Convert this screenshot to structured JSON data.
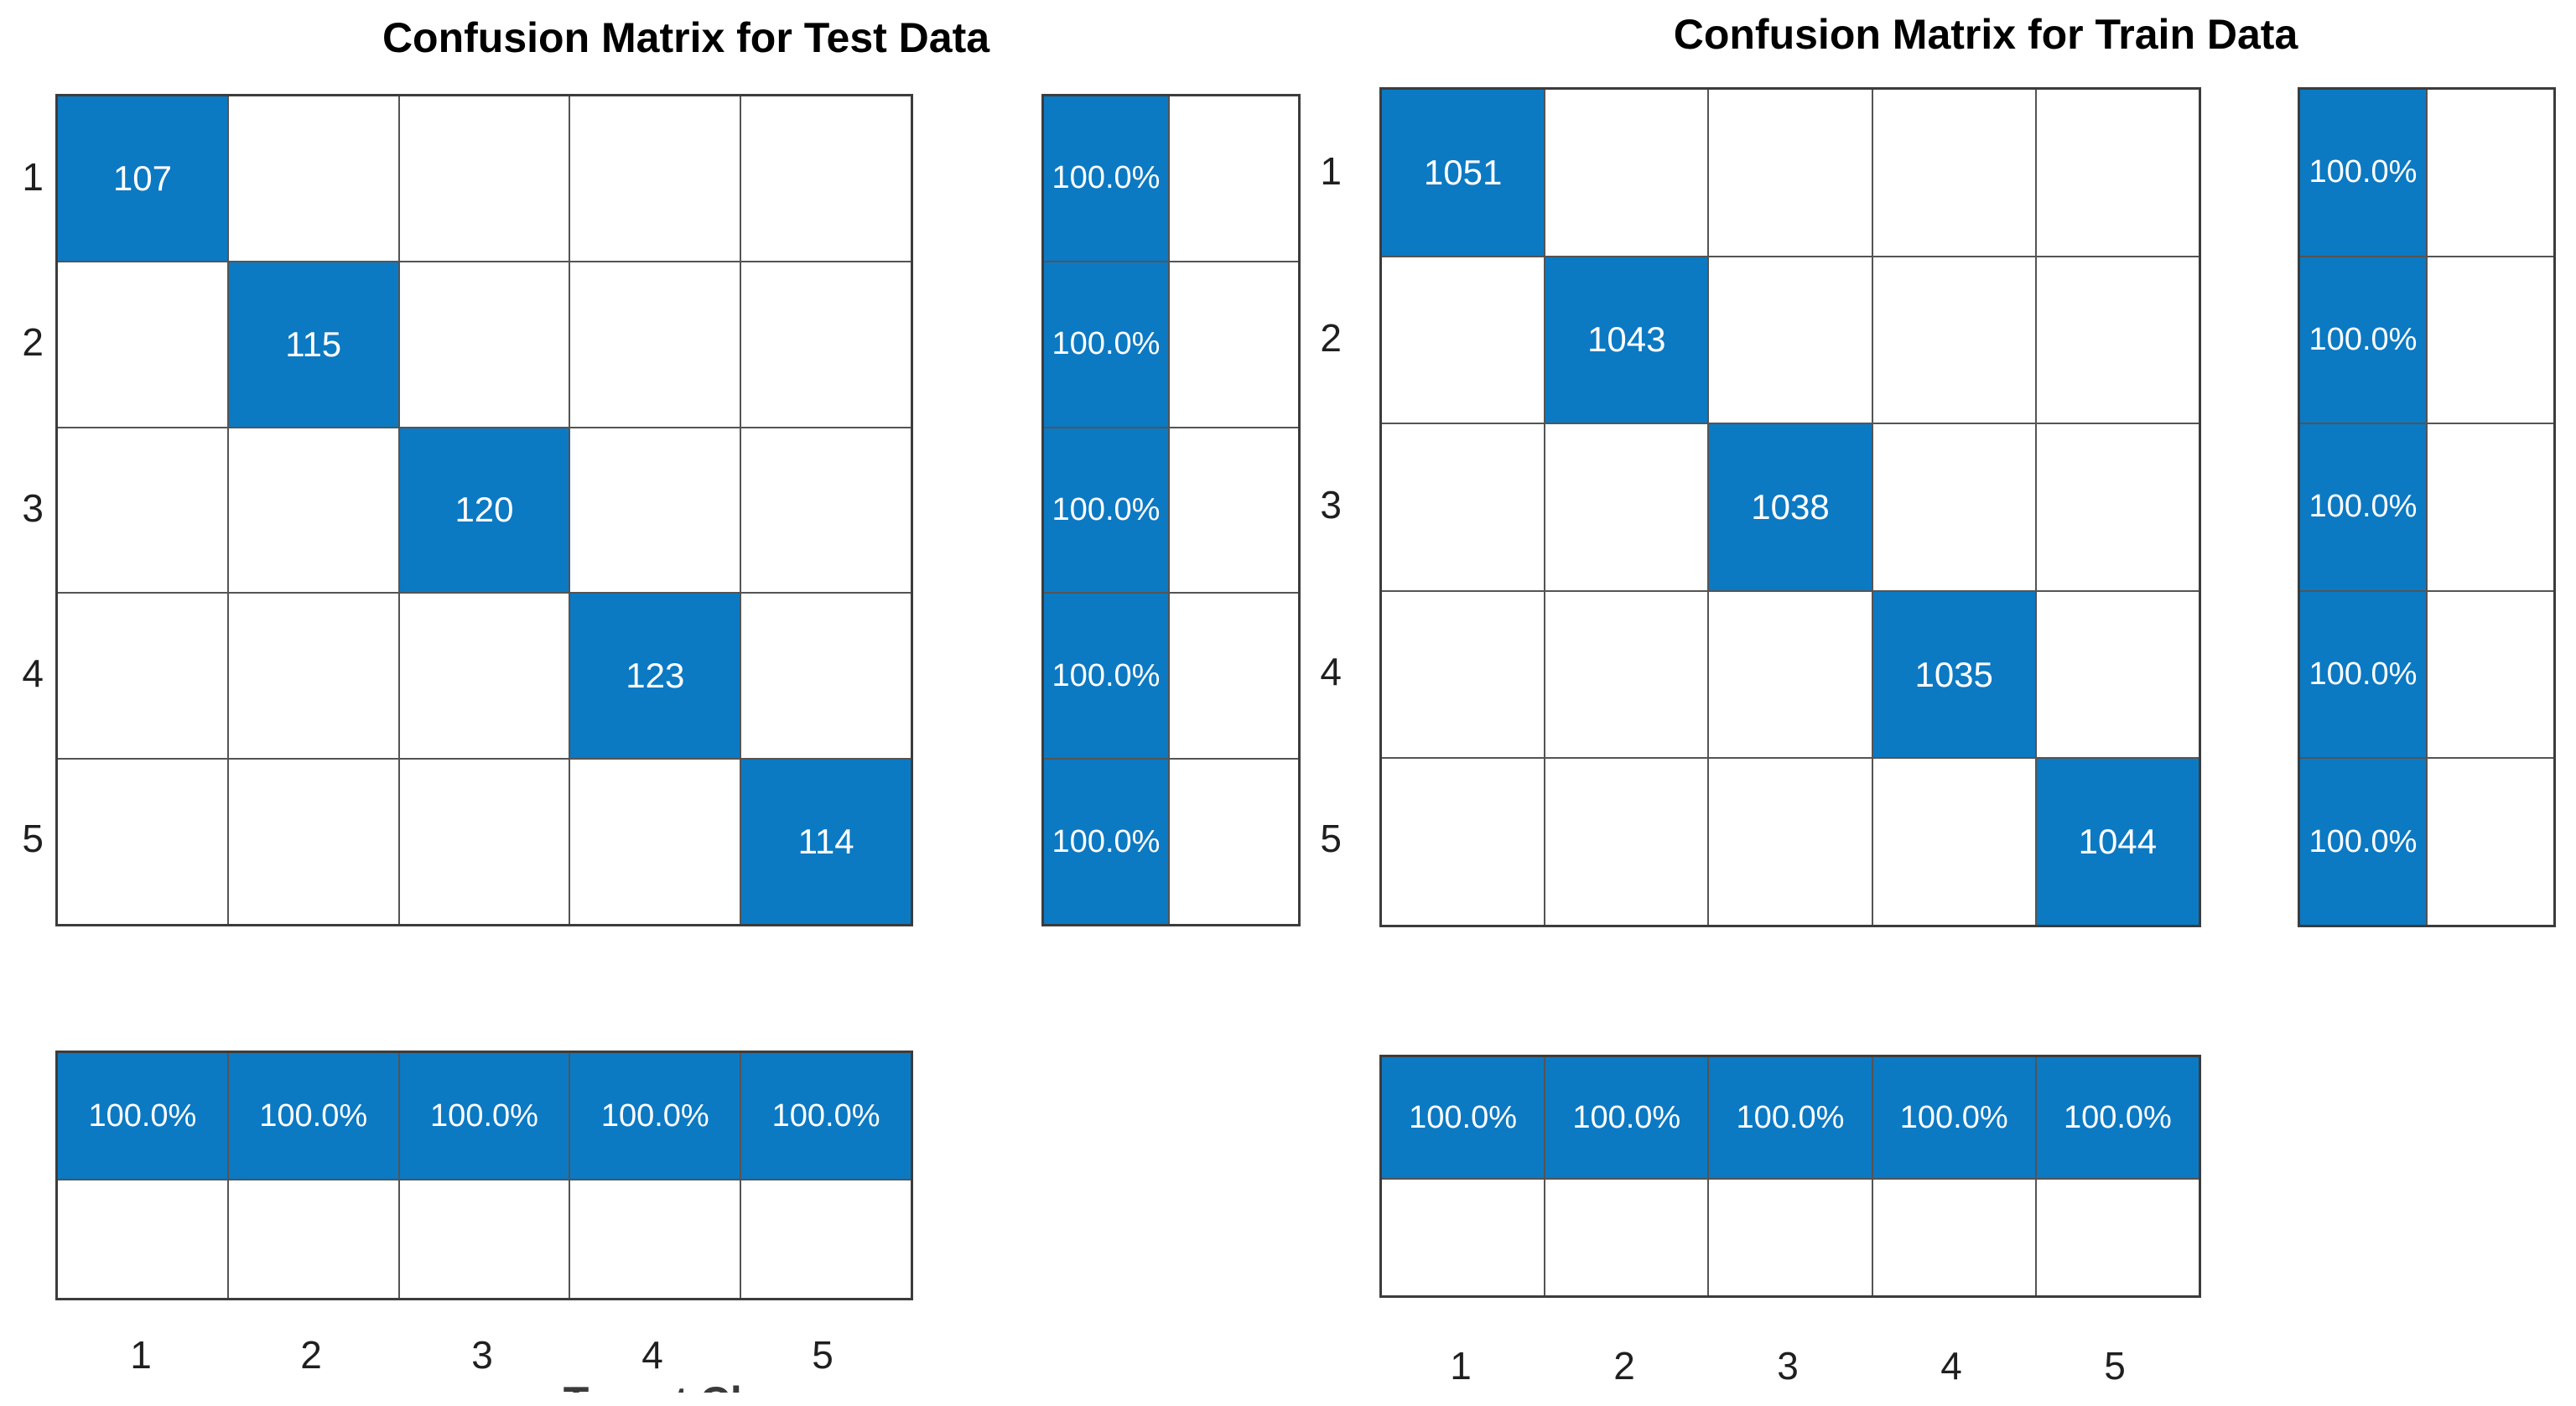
{
  "colors": {
    "cell_fill_blue": "#0c79c3",
    "grid_line": "#545454",
    "outer_border": "#3c3c3c",
    "cell_text": "#ffffff",
    "label_text": "#1f1f1f"
  },
  "chart_data": [
    {
      "type": "heatmap",
      "title": "Confusion Matrix for Test Data",
      "x_ticks": [
        "1",
        "2",
        "3",
        "4",
        "5"
      ],
      "y_ticks": [
        "1",
        "2",
        "3",
        "4",
        "5"
      ],
      "matrix": [
        [
          107,
          0,
          0,
          0,
          0
        ],
        [
          0,
          115,
          0,
          0,
          0
        ],
        [
          0,
          0,
          120,
          0,
          0
        ],
        [
          0,
          0,
          0,
          123,
          0
        ],
        [
          0,
          0,
          0,
          0,
          114
        ]
      ],
      "diagonal_counts": [
        107,
        115,
        120,
        123,
        114
      ],
      "row_summary_right_percent": [
        "100.0%",
        "100.0%",
        "100.0%",
        "100.0%",
        "100.0%"
      ],
      "col_summary_bottom_percent": [
        "100.0%",
        "100.0%",
        "100.0%",
        "100.0%",
        "100.0%"
      ],
      "xlabel": "Target Class",
      "xlabel_clipped": true,
      "legend_position": "none",
      "grid": true
    },
    {
      "type": "heatmap",
      "title": "Confusion Matrix for Train Data",
      "x_ticks": [
        "1",
        "2",
        "3",
        "4",
        "5"
      ],
      "y_ticks": [
        "1",
        "2",
        "3",
        "4",
        "5"
      ],
      "matrix": [
        [
          1051,
          0,
          0,
          0,
          0
        ],
        [
          0,
          1043,
          0,
          0,
          0
        ],
        [
          0,
          0,
          1038,
          0,
          0
        ],
        [
          0,
          0,
          0,
          1035,
          0
        ],
        [
          0,
          0,
          0,
          0,
          1044
        ]
      ],
      "diagonal_counts": [
        1051,
        1043,
        1038,
        1035,
        1044
      ],
      "row_summary_right_percent": [
        "100.0%",
        "100.0%",
        "100.0%",
        "100.0%",
        "100.0%"
      ],
      "col_summary_bottom_percent": [
        "100.0%",
        "100.0%",
        "100.0%",
        "100.0%",
        "100.0%"
      ],
      "legend_position": "none",
      "grid": true
    }
  ]
}
